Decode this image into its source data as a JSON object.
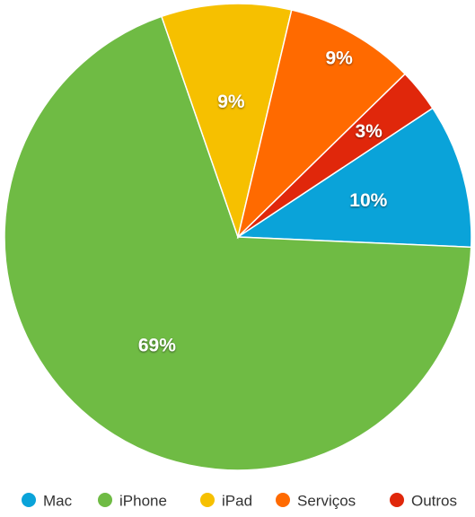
{
  "chart_data": {
    "type": "pie",
    "title": "",
    "start_angle_deg": 0,
    "direction": "counterclockwise",
    "legend_position": "bottom",
    "slices": [
      {
        "name": "Mac",
        "value": 10,
        "label": "10%",
        "color": "#0aa3d9"
      },
      {
        "name": "iPhone",
        "value": 69,
        "label": "69%",
        "color": "#6fbb44"
      },
      {
        "name": "iPad",
        "value": 9,
        "label": "9%",
        "color": "#f6c000"
      },
      {
        "name": "Serviços",
        "value": 9,
        "label": "9%",
        "color": "#ff6a00"
      },
      {
        "name": "Outros",
        "value": 3,
        "label": "3%",
        "color": "#e0270b"
      }
    ]
  }
}
